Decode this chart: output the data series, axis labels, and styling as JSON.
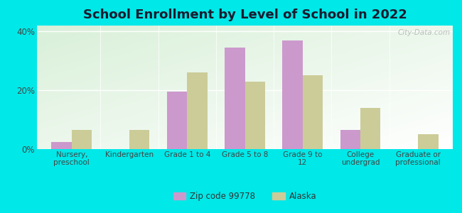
{
  "title": "School Enrollment by Level of School in 2022",
  "categories": [
    "Nursery,\npreschool",
    "Kindergarten",
    "Grade 1 to 4",
    "Grade 5 to 8",
    "Grade 9 to\n12",
    "College\nundergrad",
    "Graduate or\nprofessional"
  ],
  "zip_values": [
    2.5,
    0.0,
    19.5,
    34.5,
    37.0,
    6.5,
    0.0
  ],
  "alaska_values": [
    6.5,
    6.5,
    26.0,
    23.0,
    25.0,
    14.0,
    5.0
  ],
  "zip_color": "#cc99cc",
  "alaska_color": "#cccc99",
  "background_outer": "#00e8e8",
  "ylim": [
    0,
    42
  ],
  "yticks": [
    0,
    20,
    40
  ],
  "ytick_labels": [
    "0%",
    "20%",
    "40%"
  ],
  "legend_zip_label": "Zip code 99778",
  "legend_alaska_label": "Alaska",
  "title_fontsize": 13,
  "watermark": "City-Data.com"
}
